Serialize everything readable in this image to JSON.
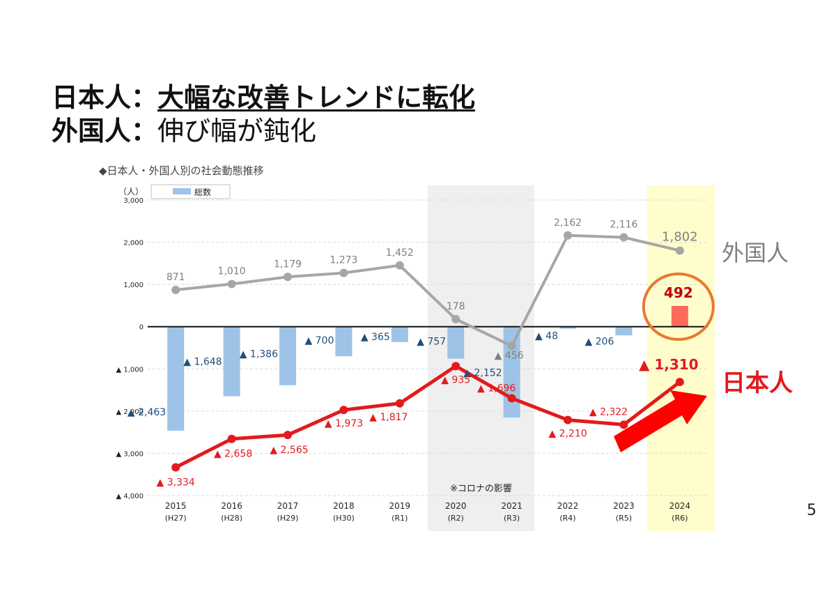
{
  "headline": {
    "line1": {
      "prefix": "日本人：",
      "emphasis": "大幅な改善トレンドに転化"
    },
    "line2": {
      "prefix": "外国人：",
      "emphasis": "伸び幅が鈍化"
    }
  },
  "page_number": "5",
  "chart_data": {
    "type": "line",
    "title": "◆日本人・外国人別の社会動態推移",
    "unit_label": "（人）",
    "categories": [
      "2015",
      "2016",
      "2017",
      "2018",
      "2019",
      "2020",
      "2021",
      "2022",
      "2023",
      "2024"
    ],
    "category_sublabels": [
      "(H27)",
      "(H28)",
      "(H29)",
      "(H30)",
      "(R1)",
      "(R2)",
      "(R3)",
      "(R4)",
      "(R5)",
      "(R6)"
    ],
    "ylim": [
      -4000,
      3000
    ],
    "yticks": [
      3000,
      2000,
      1000,
      0,
      -1000,
      -2000,
      -3000,
      -4000
    ],
    "ytick_labels": [
      "3,000",
      "2,000",
      "1,000",
      "0",
      "▲ 1,000",
      "▲ 2,000",
      "▲ 3,000",
      "▲ 4,000"
    ],
    "grid": true,
    "series": [
      {
        "name": "総数",
        "kind": "bar",
        "color": "#9DC3E6",
        "label_color": "#1F4E79",
        "values": [
          -2463,
          -1648,
          -1386,
          -700,
          -365,
          -757,
          -2152,
          -48,
          -206,
          492
        ],
        "labels": [
          "▲ 2,463",
          "▲ 1,648",
          "▲ 1,386",
          "▲ 700",
          "▲ 365",
          "▲ 757",
          "▲ 2,152",
          "▲ 48",
          "▲ 206",
          "492"
        ],
        "highlight_color": "#FF6B5B"
      },
      {
        "name": "外国人",
        "kind": "line",
        "color": "#A6A6A6",
        "label_color": "#7F7F7F",
        "values": [
          871,
          1010,
          1179,
          1273,
          1452,
          178,
          -456,
          2162,
          2116,
          1802
        ],
        "labels": [
          "871",
          "1,010",
          "1,179",
          "1,273",
          "1,452",
          "178",
          "▲ 456",
          "2,162",
          "2,116",
          "1,802"
        ]
      },
      {
        "name": "日本人",
        "kind": "line",
        "color": "#E31A1C",
        "label_color": "#E31A1C",
        "values": [
          -3334,
          -2658,
          -2565,
          -1973,
          -1817,
          -935,
          -1696,
          -2210,
          -2322,
          -1310
        ],
        "labels": [
          "▲ 3,334",
          "▲ 2,658",
          "▲ 2,565",
          "▲ 1,973",
          "▲ 1,817",
          "▲ 935",
          "▲ 1,696",
          "▲ 2,210",
          "▲ 2,322",
          "▲ 1,310"
        ]
      }
    ],
    "legend": {
      "label": "総数",
      "placement": "top-left"
    },
    "shaded_regions": [
      {
        "from": "2020",
        "to": "2021",
        "color": "#EFEFEF",
        "note": "※コロナの影響"
      },
      {
        "from": "2024",
        "to": "2024",
        "color": "#FFFDCC"
      }
    ],
    "annotations": {
      "foreign_label": "外国人",
      "japanese_label": "日本人",
      "highlight_value": "492",
      "circle_color": "#E8792E",
      "arrow_color": "#FF0000"
    }
  }
}
